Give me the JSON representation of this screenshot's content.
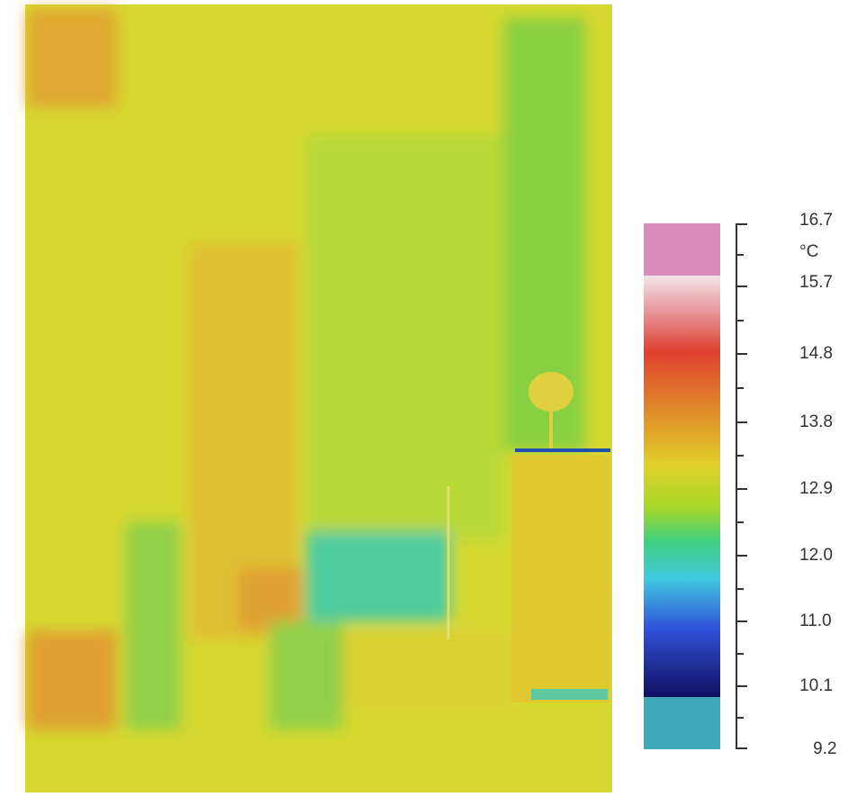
{
  "scale": {
    "unit": "°C",
    "labels": [
      "16.7",
      "15.7",
      "14.8",
      "13.8",
      "12.9",
      "12.0",
      "11.0",
      "10.1",
      "9.2"
    ]
  }
}
